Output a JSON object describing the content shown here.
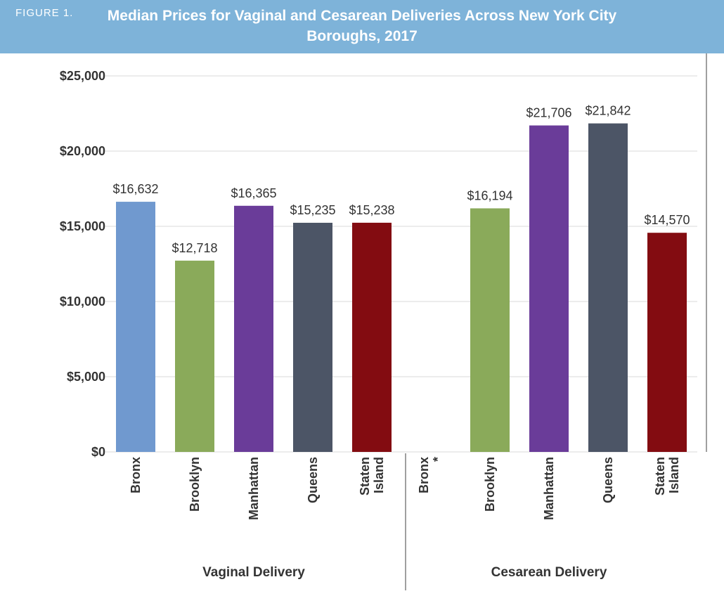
{
  "figure_label": "FIGURE 1.",
  "chart_data": {
    "type": "bar",
    "title_line1": "Median Prices for Vaginal and Cesarean Deliveries Across New York City",
    "title_line2": "Boroughs, 2017",
    "ylim": [
      0,
      25000
    ],
    "yticks": [
      0,
      5000,
      10000,
      15000,
      20000,
      25000
    ],
    "ytick_labels": [
      "$0",
      "$5,000",
      "$10,000",
      "$15,000",
      "$20,000",
      "$25,000"
    ],
    "grid": true,
    "groups": [
      {
        "name": "Vaginal Delivery",
        "categories": [
          "Bronx",
          "Brooklyn",
          "Manhattan",
          "Queens",
          "Staten Island"
        ],
        "values": [
          16632,
          12718,
          16365,
          15235,
          15238
        ],
        "value_labels": [
          "$16,632",
          "$12,718",
          "$16,365",
          "$15,235",
          "$15,238"
        ]
      },
      {
        "name": "Cesarean Delivery",
        "categories": [
          "Bronx *",
          "Brooklyn",
          "Manhattan",
          "Queens",
          "Staten Island"
        ],
        "values": [
          null,
          16194,
          21706,
          21842,
          14570
        ],
        "value_labels": [
          "",
          "$16,194",
          "$21,706",
          "$21,842",
          "$14,570"
        ]
      }
    ],
    "colors": [
      "#7099cf",
      "#8aaa5a",
      "#6a3c99",
      "#4c5566",
      "#830c11"
    ]
  }
}
